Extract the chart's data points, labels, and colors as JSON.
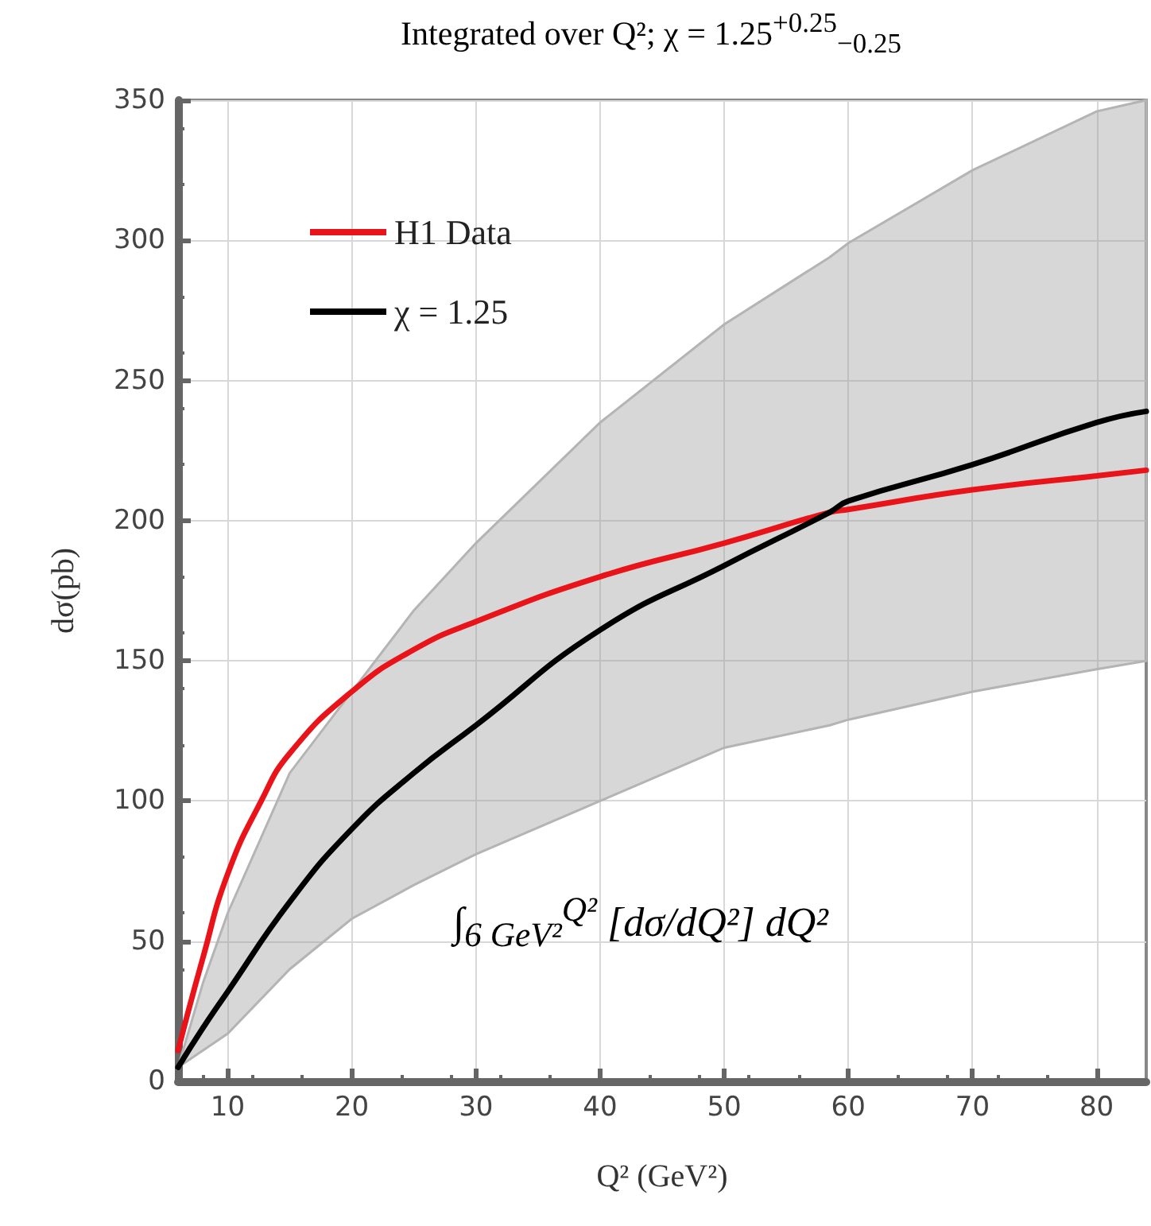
{
  "chart_data": {
    "type": "line",
    "title": "Integrated over Q²; χ = 1.25$^{+0.25}$$_{−0.25}$",
    "xlabel": "Q² (GeV²)",
    "ylabel": "dσ(pb)",
    "annotations": [
      "∫$_{6 GeV²}$$^{Q²}$ [dσ/dQ²] dQ²"
    ],
    "series": [
      {
        "name": "H1 Data",
        "color": "#e8141a",
        "x": [
          6,
          8,
          10,
          12.7,
          15,
          20,
          25,
          30,
          40,
          50,
          58.5,
          60,
          70,
          80,
          84
        ],
        "values": [
          11,
          44,
          74,
          100,
          117,
          139,
          154,
          164,
          180,
          192,
          203,
          204,
          211,
          216,
          218
        ]
      },
      {
        "name": "χ = 1.25",
        "color": "#000000",
        "x": [
          6,
          8,
          10,
          15,
          20,
          25,
          30,
          40,
          50,
          58.5,
          60,
          70,
          80,
          84
        ],
        "values": [
          5,
          19,
          32,
          64,
          90,
          110,
          127,
          161,
          184,
          203,
          207,
          220,
          235,
          239
        ],
        "lower": [
          5,
          11,
          17,
          40,
          58,
          70,
          81,
          100,
          119,
          127,
          129,
          139,
          147,
          150
        ],
        "upper": [
          5,
          35,
          60,
          110,
          139,
          168,
          192,
          235,
          270,
          294,
          299,
          325,
          346,
          350
        ]
      }
    ],
    "xlim": [
      6,
      84
    ],
    "xticks": [
      10,
      20,
      30,
      40,
      50,
      60,
      70,
      80
    ],
    "ylim": [
      0,
      350
    ],
    "yticks": [
      0,
      50,
      100,
      150,
      200,
      250,
      300,
      350
    ],
    "grid": true,
    "legend": "top left",
    "line_style": "solid",
    "marker": "none"
  }
}
